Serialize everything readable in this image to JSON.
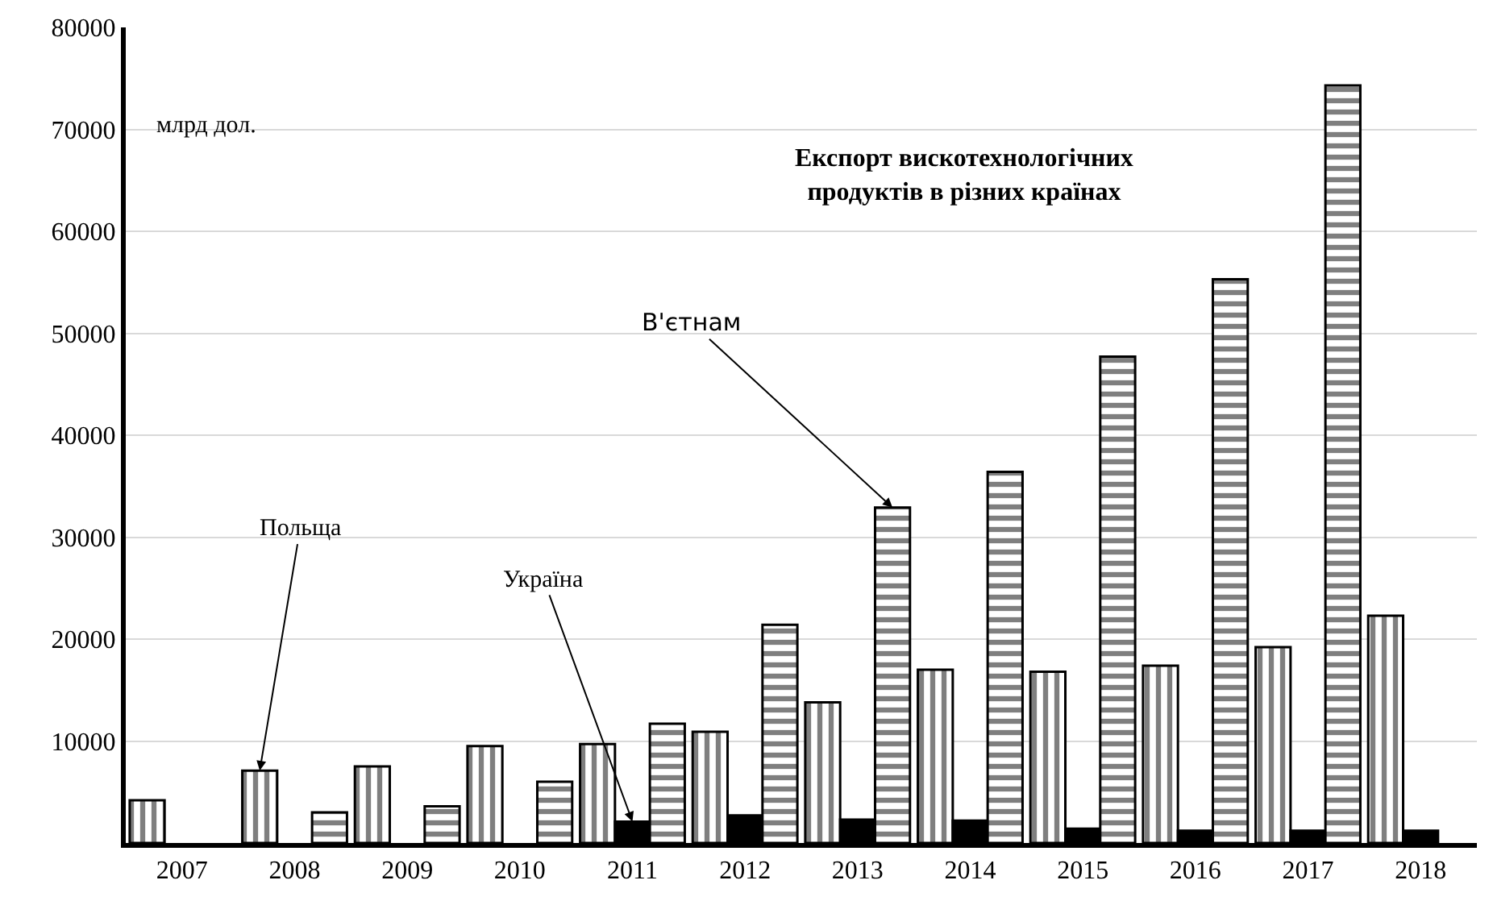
{
  "chart_data": {
    "type": "bar",
    "title": "Експорт вискотехнологічних\nпродуктів в різних країнах",
    "ylabel": "млрд дол.",
    "categories": [
      "2007",
      "2008",
      "2009",
      "2010",
      "2011",
      "2012",
      "2013",
      "2014",
      "2015",
      "2016",
      "2017",
      "2018"
    ],
    "series": [
      {
        "name": "Польща",
        "color": "#000000",
        "values": [
          4200,
          7100,
          7500,
          9500,
          9700,
          10900,
          13800,
          17000,
          16800,
          17400,
          19200,
          22300
        ]
      },
      {
        "name": "Україна",
        "color": "#000000",
        "values": [
          null,
          null,
          null,
          null,
          2100,
          2700,
          2300,
          2200,
          1400,
          1200,
          1200,
          1200
        ]
      },
      {
        "name": "В'єтнам",
        "color": "#000000",
        "values": [
          null,
          3000,
          3600,
          6000,
          11700,
          21400,
          32900,
          36400,
          47700,
          55300,
          74300,
          null
        ]
      }
    ],
    "ylim": [
      0,
      80000
    ],
    "yticks": [
      10000,
      20000,
      30000,
      40000,
      50000,
      60000,
      70000,
      80000
    ],
    "grid": "y"
  }
}
